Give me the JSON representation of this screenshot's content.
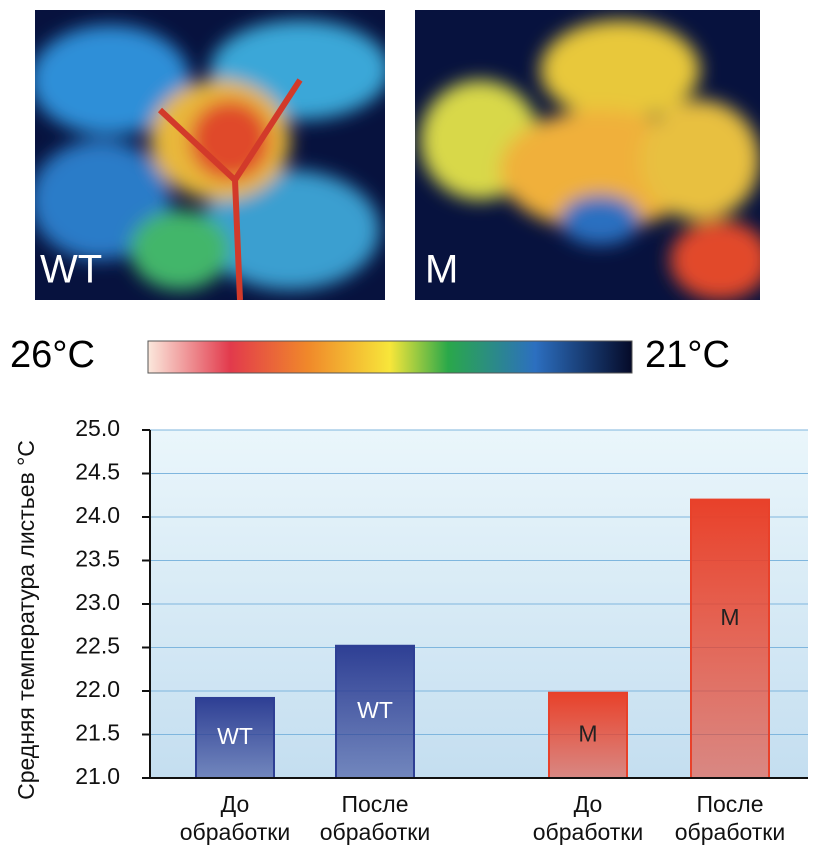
{
  "images": [
    {
      "label": "WT"
    },
    {
      "label": "M"
    }
  ],
  "colorbar": {
    "max_label": "26°C",
    "min_label": "21°C"
  },
  "chart_data": {
    "type": "bar",
    "y_label": "Средняя температура листьев °C",
    "categories": [
      "До обработки",
      "После обработки",
      "До обработки",
      "После обработки"
    ],
    "series": [
      {
        "name": "WT",
        "color": "#2e3f94",
        "values": [
          21.92,
          22.52,
          null,
          null
        ]
      },
      {
        "name": "M",
        "color": "#e8412a",
        "values": [
          null,
          null,
          21.98,
          24.2
        ]
      }
    ],
    "ylim": [
      21,
      25
    ],
    "yticks": [
      {
        "value": 21,
        "label": "21.0"
      },
      21.5,
      {
        "value": 22,
        "label": "22.0"
      },
      22.5,
      {
        "value": 23,
        "label": "23.0"
      },
      23.5,
      {
        "value": 24,
        "label": "24.0"
      },
      24.5,
      {
        "value": 25,
        "label": "25.0"
      }
    ],
    "grid": true
  }
}
